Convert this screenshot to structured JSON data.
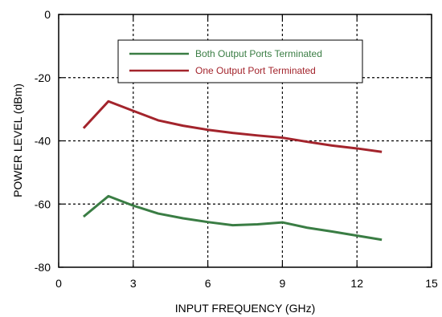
{
  "chart_data": {
    "type": "line",
    "title": "",
    "xlabel": "INPUT FREQUENCY (GHz)",
    "ylabel": "POWER LEVEL (dBm)",
    "xlim": [
      0,
      15
    ],
    "ylim": [
      -80,
      0
    ],
    "xticks": [
      0,
      3,
      6,
      9,
      12,
      15
    ],
    "yticks": [
      0,
      -20,
      -40,
      -60,
      -80
    ],
    "grid": true,
    "legend_position": "top-center",
    "series": [
      {
        "name": "Both Output Ports Terminated",
        "color": "#3a7d44",
        "x": [
          1,
          2,
          3,
          4,
          5,
          6,
          7,
          8,
          9,
          10,
          11,
          12,
          13
        ],
        "y": [
          -64,
          -57.5,
          -60.5,
          -63,
          -64.5,
          -65.7,
          -66.7,
          -66.4,
          -65.8,
          -67.5,
          -68.7,
          -70,
          -71.3
        ]
      },
      {
        "name": "One Output Port Terminated",
        "color": "#a3242c",
        "x": [
          1,
          2,
          3,
          4,
          5,
          6,
          7,
          8,
          9,
          10,
          11,
          12,
          13
        ],
        "y": [
          -36,
          -27.5,
          -30.5,
          -33.5,
          -35.2,
          -36.5,
          -37.5,
          -38.3,
          -39,
          -40.3,
          -41.5,
          -42.4,
          -43.5
        ]
      }
    ]
  }
}
